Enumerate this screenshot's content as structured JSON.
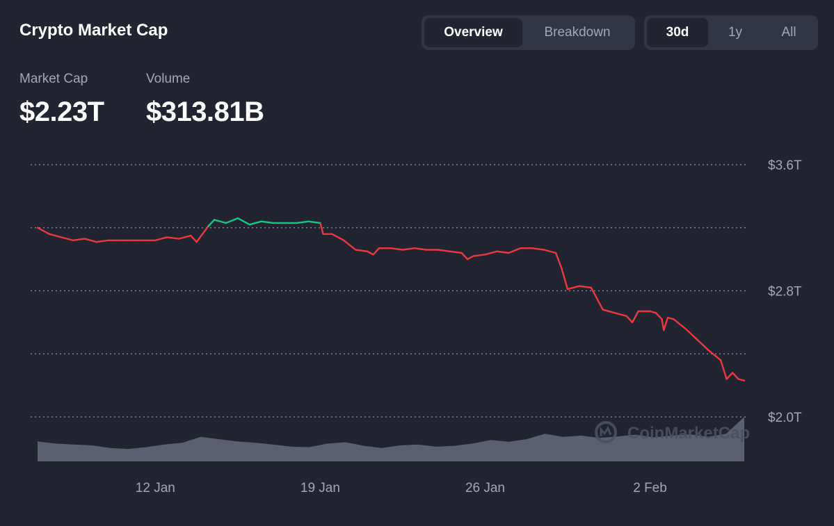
{
  "header": {
    "title": "Crypto Market Cap",
    "view_tabs": [
      {
        "label": "Overview",
        "active": true
      },
      {
        "label": "Breakdown",
        "active": false
      }
    ],
    "range_tabs": [
      {
        "label": "30d",
        "active": true
      },
      {
        "label": "1y",
        "active": false
      },
      {
        "label": "All",
        "active": false
      }
    ]
  },
  "stats": {
    "market_cap": {
      "label": "Market Cap",
      "value": "$2.23T"
    },
    "volume": {
      "label": "Volume",
      "value": "$313.81B"
    }
  },
  "watermark": "CoinMarketCap",
  "colors": {
    "background": "#222531",
    "up": "#16c784",
    "down": "#ea3943",
    "volume": "#5a5f72",
    "grid": "#a1a7bb",
    "muted_text": "#a1a7bb"
  },
  "chart_data": {
    "type": "line",
    "ylim": [
      2.0,
      3.6
    ],
    "yticks": [
      2.0,
      2.8,
      3.6
    ],
    "ytick_labels": [
      "$2.0T",
      "$2.8T",
      "$3.6T"
    ],
    "gridlines": [
      2.0,
      2.4,
      2.8,
      3.2,
      3.6
    ],
    "xticks": [
      {
        "date": "2025-01-12",
        "label": "12 Jan"
      },
      {
        "date": "2025-01-19",
        "label": "19 Jan"
      },
      {
        "date": "2025-01-26",
        "label": "26 Jan"
      },
      {
        "date": "2025-02-02",
        "label": "2 Feb"
      }
    ],
    "x_start": "2025-01-07",
    "x_end": "2025-02-06",
    "baseline": 3.21,
    "series": [
      {
        "values": [
          [
            "2025-01-07",
            3.2
          ],
          [
            "2025-01-07T12",
            3.16
          ],
          [
            "2025-01-08",
            3.14
          ],
          [
            "2025-01-08T12",
            3.12
          ],
          [
            "2025-01-09",
            3.13
          ],
          [
            "2025-01-09T12",
            3.11
          ],
          [
            "2025-01-10",
            3.12
          ],
          [
            "2025-01-10T12",
            3.12
          ],
          [
            "2025-01-11",
            3.12
          ],
          [
            "2025-01-11T12",
            3.12
          ],
          [
            "2025-01-12",
            3.12
          ],
          [
            "2025-01-12T12",
            3.14
          ],
          [
            "2025-01-13",
            3.13
          ],
          [
            "2025-01-13T12",
            3.15
          ],
          [
            "2025-01-13T18",
            3.11
          ],
          [
            "2025-01-14",
            3.16
          ],
          [
            "2025-01-14T06",
            3.21
          ],
          [
            "2025-01-14T12",
            3.25
          ],
          [
            "2025-01-15",
            3.23
          ],
          [
            "2025-01-15T12",
            3.26
          ],
          [
            "2025-01-16",
            3.22
          ],
          [
            "2025-01-16T12",
            3.24
          ],
          [
            "2025-01-17",
            3.23
          ],
          [
            "2025-01-17T12",
            3.23
          ],
          [
            "2025-01-18",
            3.23
          ],
          [
            "2025-01-18T12",
            3.24
          ],
          [
            "2025-01-19",
            3.23
          ],
          [
            "2025-01-19T03",
            3.16
          ],
          [
            "2025-01-19T12",
            3.16
          ],
          [
            "2025-01-20",
            3.12
          ],
          [
            "2025-01-20T12",
            3.06
          ],
          [
            "2025-01-21",
            3.05
          ],
          [
            "2025-01-21T06",
            3.03
          ],
          [
            "2025-01-21T12",
            3.07
          ],
          [
            "2025-01-22",
            3.07
          ],
          [
            "2025-01-22T12",
            3.06
          ],
          [
            "2025-01-23",
            3.07
          ],
          [
            "2025-01-23T12",
            3.06
          ],
          [
            "2025-01-24",
            3.06
          ],
          [
            "2025-01-24T12",
            3.05
          ],
          [
            "2025-01-25",
            3.04
          ],
          [
            "2025-01-25T06",
            3.0
          ],
          [
            "2025-01-25T12",
            3.02
          ],
          [
            "2025-01-26",
            3.03
          ],
          [
            "2025-01-26T12",
            3.05
          ],
          [
            "2025-01-27",
            3.04
          ],
          [
            "2025-01-27T12",
            3.07
          ],
          [
            "2025-01-28",
            3.07
          ],
          [
            "2025-01-28T12",
            3.06
          ],
          [
            "2025-01-29",
            3.04
          ],
          [
            "2025-01-29T06",
            2.94
          ],
          [
            "2025-01-29T12",
            2.81
          ],
          [
            "2025-01-30",
            2.83
          ],
          [
            "2025-01-30T12",
            2.82
          ],
          [
            "2025-01-30T18",
            2.75
          ],
          [
            "2025-01-31",
            2.68
          ],
          [
            "2025-01-31T12",
            2.66
          ],
          [
            "2025-02-01",
            2.64
          ],
          [
            "2025-02-01T06",
            2.6
          ],
          [
            "2025-02-01T12",
            2.67
          ],
          [
            "2025-02-02",
            2.67
          ],
          [
            "2025-02-02T06",
            2.66
          ],
          [
            "2025-02-02T12",
            2.62
          ],
          [
            "2025-02-02T14",
            2.55
          ],
          [
            "2025-02-02T18",
            2.63
          ],
          [
            "2025-02-03",
            2.62
          ],
          [
            "2025-02-03T12",
            2.56
          ],
          [
            "2025-02-04",
            2.49
          ],
          [
            "2025-02-04T12",
            2.42
          ],
          [
            "2025-02-05",
            2.36
          ],
          [
            "2025-02-05T06",
            2.24
          ],
          [
            "2025-02-05T12",
            2.28
          ],
          [
            "2025-02-05T18",
            2.24
          ],
          [
            "2025-02-06",
            2.23
          ]
        ]
      }
    ],
    "volume_series": [
      0.45,
      0.4,
      0.38,
      0.36,
      0.3,
      0.28,
      0.32,
      0.38,
      0.42,
      0.55,
      0.5,
      0.45,
      0.42,
      0.38,
      0.33,
      0.32,
      0.4,
      0.43,
      0.35,
      0.3,
      0.36,
      0.38,
      0.33,
      0.35,
      0.4,
      0.48,
      0.44,
      0.5,
      0.62,
      0.55,
      0.58,
      0.53,
      0.56,
      0.6,
      0.54,
      0.58,
      0.61,
      0.55,
      0.62,
      1.0
    ]
  }
}
